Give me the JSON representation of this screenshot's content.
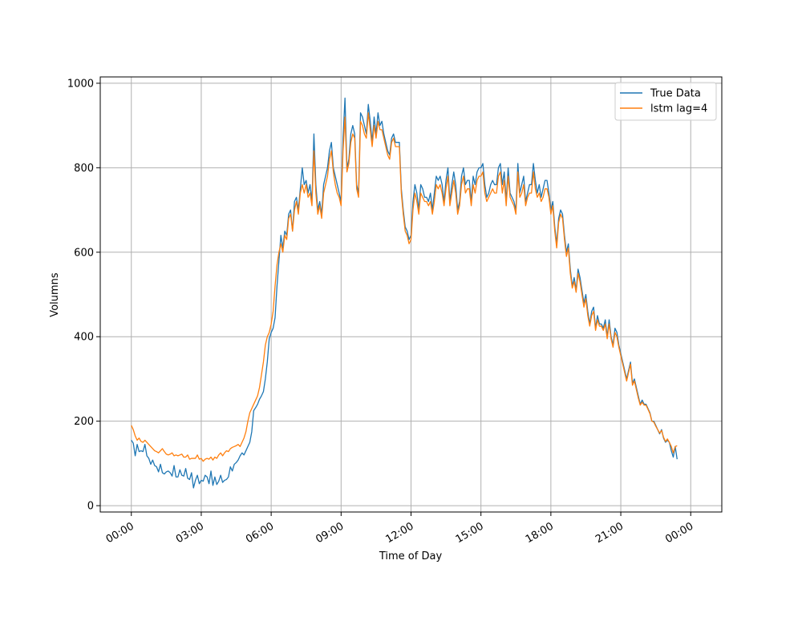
{
  "chart_data": {
    "type": "line",
    "title": "",
    "xlabel": "Time of Day",
    "ylabel": "Volumns",
    "xlim_minutes": [
      -80,
      1520
    ],
    "ylim": [
      -15,
      1015
    ],
    "grid": true,
    "legend_position": "upper right",
    "x_ticks": [
      {
        "label": "00:00",
        "minute": 0
      },
      {
        "label": "03:00",
        "minute": 180
      },
      {
        "label": "06:00",
        "minute": 360
      },
      {
        "label": "09:00",
        "minute": 540
      },
      {
        "label": "12:00",
        "minute": 720
      },
      {
        "label": "15:00",
        "minute": 900
      },
      {
        "label": "18:00",
        "minute": 1080
      },
      {
        "label": "21:00",
        "minute": 1260
      },
      {
        "label": "00:00",
        "minute": 1440
      }
    ],
    "y_ticks": [
      0,
      200,
      400,
      600,
      800,
      1000
    ],
    "x_start_label": "00:00",
    "x_interval_minutes": 5,
    "series": [
      {
        "name": "True Data",
        "color": "#1f77b4",
        "values": [
          155,
          148,
          118,
          145,
          128,
          130,
          128,
          145,
          118,
          112,
          98,
          108,
          95,
          92,
          80,
          98,
          78,
          75,
          80,
          82,
          78,
          70,
          95,
          68,
          68,
          85,
          72,
          70,
          88,
          65,
          62,
          78,
          42,
          60,
          72,
          52,
          60,
          58,
          72,
          68,
          52,
          82,
          48,
          68,
          50,
          58,
          72,
          55,
          60,
          62,
          68,
          92,
          82,
          98,
          102,
          108,
          118,
          125,
          120,
          130,
          140,
          150,
          175,
          225,
          232,
          240,
          252,
          260,
          270,
          300,
          340,
          395,
          410,
          420,
          445,
          520,
          580,
          640,
          610,
          650,
          640,
          690,
          700,
          650,
          720,
          730,
          700,
          750,
          800,
          760,
          770,
          740,
          760,
          720,
          880,
          760,
          700,
          720,
          690,
          760,
          780,
          800,
          840,
          860,
          800,
          780,
          760,
          740,
          720,
          870,
          965,
          800,
          820,
          880,
          900,
          880,
          760,
          740,
          930,
          920,
          900,
          880,
          950,
          910,
          860,
          920,
          880,
          930,
          900,
          910,
          880,
          860,
          840,
          830,
          870,
          880,
          860,
          860,
          860,
          750,
          700,
          660,
          650,
          630,
          640,
          720,
          760,
          740,
          700,
          760,
          750,
          730,
          730,
          720,
          740,
          700,
          740,
          780,
          770,
          780,
          760,
          720,
          770,
          800,
          720,
          760,
          790,
          760,
          700,
          720,
          780,
          800,
          760,
          770,
          770,
          720,
          780,
          760,
          790,
          800,
          800,
          810,
          760,
          730,
          740,
          760,
          770,
          760,
          760,
          800,
          810,
          760,
          790,
          720,
          800,
          740,
          730,
          720,
          700,
          810,
          740,
          760,
          780,
          720,
          740,
          760,
          760,
          810,
          770,
          740,
          760,
          730,
          750,
          770,
          770,
          740,
          700,
          720,
          660,
          620,
          680,
          700,
          690,
          640,
          600,
          620,
          560,
          520,
          540,
          510,
          560,
          540,
          510,
          480,
          500,
          460,
          430,
          460,
          470,
          420,
          450,
          430,
          430,
          420,
          440,
          400,
          440,
          400,
          380,
          420,
          410,
          380,
          360,
          340,
          320,
          300,
          320,
          340,
          290,
          300,
          280,
          260,
          240,
          250,
          240,
          240,
          230,
          220,
          200,
          200,
          190,
          180,
          170,
          180,
          160,
          150,
          155,
          150,
          130,
          115,
          140,
          110
        ],
        "stroke_width": 1.3
      },
      {
        "name": "lstm lag=4",
        "color": "#ff7f0e",
        "values": [
          190,
          180,
          165,
          155,
          160,
          152,
          150,
          155,
          150,
          145,
          140,
          135,
          130,
          128,
          125,
          130,
          135,
          128,
          122,
          120,
          122,
          125,
          118,
          120,
          118,
          120,
          122,
          115,
          115,
          120,
          110,
          112,
          112,
          112,
          120,
          110,
          112,
          105,
          110,
          112,
          110,
          115,
          108,
          115,
          112,
          120,
          125,
          118,
          125,
          130,
          128,
          135,
          138,
          140,
          142,
          145,
          140,
          150,
          160,
          175,
          200,
          220,
          230,
          240,
          250,
          260,
          280,
          310,
          340,
          380,
          400,
          410,
          430,
          460,
          520,
          570,
          600,
          620,
          600,
          640,
          630,
          680,
          690,
          650,
          700,
          720,
          690,
          740,
          760,
          740,
          760,
          730,
          740,
          710,
          840,
          740,
          690,
          710,
          680,
          740,
          760,
          780,
          820,
          840,
          790,
          760,
          740,
          730,
          710,
          840,
          920,
          790,
          810,
          860,
          880,
          870,
          750,
          730,
          910,
          900,
          880,
          870,
          930,
          890,
          850,
          900,
          870,
          910,
          890,
          890,
          870,
          850,
          830,
          820,
          860,
          870,
          850,
          850,
          850,
          740,
          690,
          650,
          640,
          620,
          630,
          700,
          740,
          720,
          690,
          740,
          730,
          720,
          720,
          710,
          720,
          690,
          720,
          760,
          750,
          760,
          740,
          710,
          750,
          780,
          710,
          740,
          770,
          740,
          690,
          710,
          760,
          780,
          740,
          750,
          750,
          710,
          760,
          740,
          770,
          780,
          780,
          790,
          740,
          720,
          730,
          740,
          750,
          740,
          740,
          780,
          790,
          740,
          770,
          710,
          780,
          730,
          720,
          710,
          690,
          790,
          730,
          740,
          760,
          710,
          730,
          740,
          740,
          790,
          750,
          730,
          740,
          720,
          730,
          750,
          750,
          730,
          690,
          710,
          650,
          610,
          670,
          690,
          680,
          630,
          590,
          610,
          550,
          515,
          530,
          505,
          550,
          530,
          500,
          470,
          490,
          450,
          425,
          450,
          460,
          415,
          440,
          425,
          425,
          415,
          430,
          395,
          430,
          395,
          375,
          410,
          400,
          375,
          355,
          335,
          315,
          295,
          315,
          335,
          285,
          295,
          275,
          255,
          238,
          245,
          238,
          238,
          228,
          218,
          200,
          198,
          188,
          180,
          172,
          178,
          162,
          152,
          158,
          150,
          140,
          125,
          140,
          142
        ],
        "stroke_width": 1.3
      }
    ]
  }
}
